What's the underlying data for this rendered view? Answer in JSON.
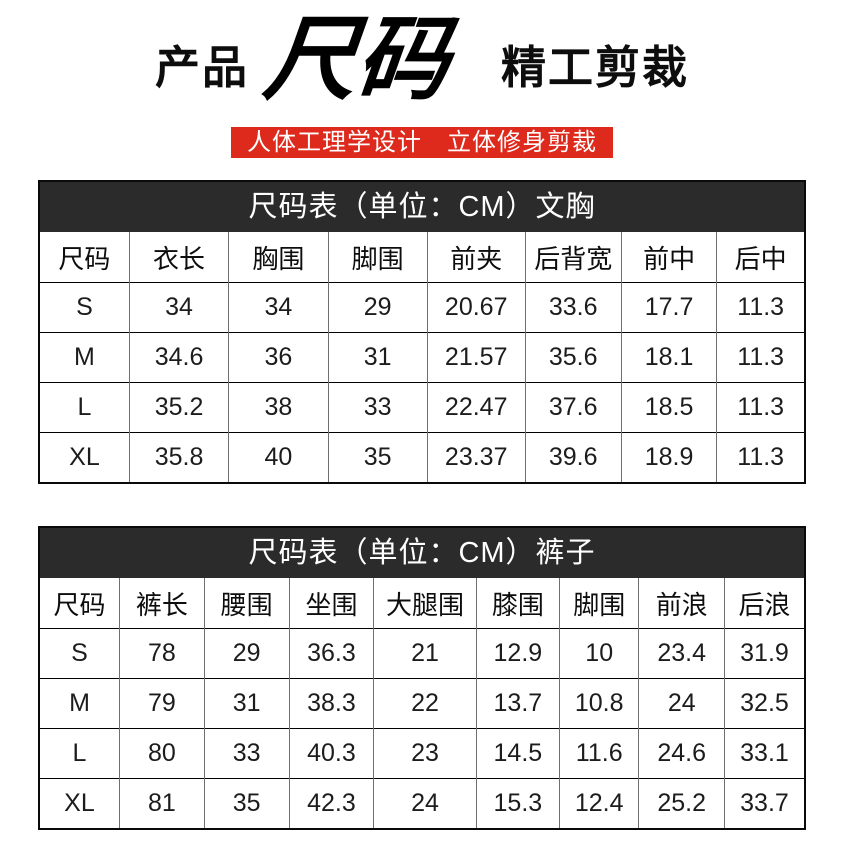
{
  "header": {
    "title_left": "产品",
    "title_brush": "尺码",
    "title_right": "精工剪裁",
    "banner": "人体工理学设计　立体修身剪裁"
  },
  "tables": [
    {
      "caption": "尺码表（单位：CM）文胸",
      "columns": [
        "尺码",
        "衣长",
        "胸围",
        "脚围",
        "前夹",
        "后背宽",
        "前中",
        "后中"
      ],
      "rows": [
        [
          "S",
          "34",
          "34",
          "29",
          "20.67",
          "33.6",
          "17.7",
          "11.3"
        ],
        [
          "M",
          "34.6",
          "36",
          "31",
          "21.57",
          "35.6",
          "18.1",
          "11.3"
        ],
        [
          "L",
          "35.2",
          "38",
          "33",
          "22.47",
          "37.6",
          "18.5",
          "11.3"
        ],
        [
          "XL",
          "35.8",
          "40",
          "35",
          "23.37",
          "39.6",
          "18.9",
          "11.3"
        ]
      ]
    },
    {
      "caption": "尺码表（单位：CM）裤子",
      "columns": [
        "尺码",
        "裤长",
        "腰围",
        "坐围",
        "大腿围",
        "膝围",
        "脚围",
        "前浪",
        "后浪"
      ],
      "rows": [
        [
          "S",
          "78",
          "29",
          "36.3",
          "21",
          "12.9",
          "10",
          "23.4",
          "31.9"
        ],
        [
          "M",
          "79",
          "31",
          "38.3",
          "22",
          "13.7",
          "10.8",
          "24",
          "32.5"
        ],
        [
          "L",
          "80",
          "33",
          "40.3",
          "23",
          "14.5",
          "11.6",
          "24.6",
          "33.1"
        ],
        [
          "XL",
          "81",
          "35",
          "42.3",
          "24",
          "15.3",
          "12.4",
          "25.2",
          "33.7"
        ]
      ]
    }
  ],
  "colors": {
    "banner_red": "#dd2a1c",
    "band_dark": "#2b2b2b"
  }
}
